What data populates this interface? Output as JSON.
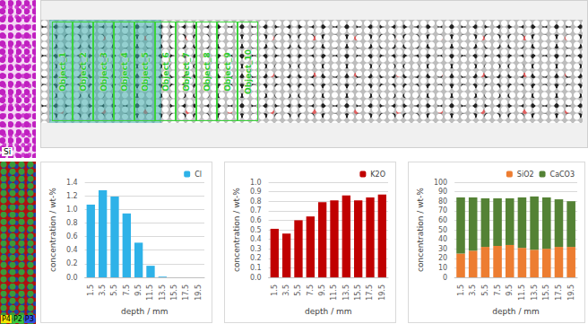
{
  "chart_data": [
    {
      "type": "bar",
      "ylabel": "concentration / wt-%",
      "xlabel": "depth / mm",
      "categories": [
        "1.5",
        "3.5",
        "5.5",
        "7.5",
        "9.5",
        "11.5",
        "13.5",
        "15.5",
        "17.5",
        "19.5"
      ],
      "series": [
        {
          "name": "Cl",
          "color": "#2eb2e8",
          "values": [
            1.07,
            1.28,
            1.19,
            0.94,
            0.51,
            0.17,
            0.01,
            0,
            0,
            0
          ]
        }
      ],
      "ylim": [
        0,
        1.4
      ],
      "yticks": [
        {
          "value": 0,
          "label": "0.0"
        },
        {
          "value": 0.2,
          "label": "0.2"
        },
        {
          "value": 0.4,
          "label": "0.4"
        },
        {
          "value": 0.6,
          "label": "0.6"
        },
        {
          "value": 0.8,
          "label": "0.8"
        },
        {
          "value": 1,
          "label": "1.0"
        },
        {
          "value": 1.2,
          "label": "1.2"
        },
        {
          "value": 1.4,
          "label": "1.4"
        }
      ],
      "grid": true,
      "legend": "upper right"
    },
    {
      "type": "bar",
      "ylabel": "concentration / wt-%",
      "xlabel": "depth / mm",
      "categories": [
        "1.5",
        "3.5",
        "5.5",
        "7.5",
        "9.5",
        "11.5",
        "13.5",
        "15.5",
        "17.5",
        "19.5"
      ],
      "series": [
        {
          "name": "K2O",
          "color": "#c00000",
          "values": [
            0.51,
            0.46,
            0.6,
            0.64,
            0.79,
            0.81,
            0.86,
            0.81,
            0.84,
            0.87
          ]
        }
      ],
      "ylim": [
        0,
        1
      ],
      "yticks": [
        {
          "value": 0,
          "label": "0.0"
        },
        {
          "value": 0.1,
          "label": "0.1"
        },
        {
          "value": 0.2,
          "label": "0.2"
        },
        {
          "value": 0.3,
          "label": "0.3"
        },
        {
          "value": 0.4,
          "label": "0.4"
        },
        {
          "value": 0.5,
          "label": "0.5"
        },
        {
          "value": 0.6,
          "label": "0.6"
        },
        {
          "value": 0.7,
          "label": "0.7"
        },
        {
          "value": 0.8,
          "label": "0.8"
        },
        {
          "value": 0.9,
          "label": "0.9"
        },
        {
          "value": 1,
          "label": "1.0"
        }
      ],
      "grid": true,
      "legend": "upper right"
    },
    {
      "type": "bar",
      "ylabel": "concentration / wt-%",
      "xlabel": "depth / mm",
      "categories": [
        "1.5",
        "3.5",
        "5.5",
        "7.5",
        "9.5",
        "11.5",
        "13.5",
        "15.5",
        "17.5",
        "19.5"
      ],
      "series": [
        {
          "name": "SiO2",
          "color": "#ed7d31",
          "values": [
            25,
            28,
            32,
            33,
            34,
            31,
            29,
            30,
            32,
            32
          ]
        },
        {
          "name": "CaCO3",
          "color": "#548235",
          "values": [
            59,
            56,
            51,
            50,
            49,
            53,
            56,
            54,
            50,
            48
          ]
        }
      ],
      "ylim": [
        0,
        100
      ],
      "yticks": [
        0,
        10,
        20,
        30,
        40,
        50,
        60,
        70,
        80,
        90,
        100
      ],
      "grid": true,
      "legend": "upper right",
      "stacked": true
    }
  ],
  "images": {
    "element_map_label": "Si",
    "object_labels": [
      "Object_1",
      "Object_2",
      "Object_3",
      "Object_4",
      "Object_5",
      "Object_6",
      "Object_7",
      "Object_8",
      "Object_9",
      "Object_10"
    ],
    "phase_labels": [
      {
        "label": "P4",
        "color": "#f2e600"
      },
      {
        "label": "P2",
        "color": "#3cc83c"
      },
      {
        "label": "P3",
        "color": "#3050e0"
      }
    ]
  }
}
